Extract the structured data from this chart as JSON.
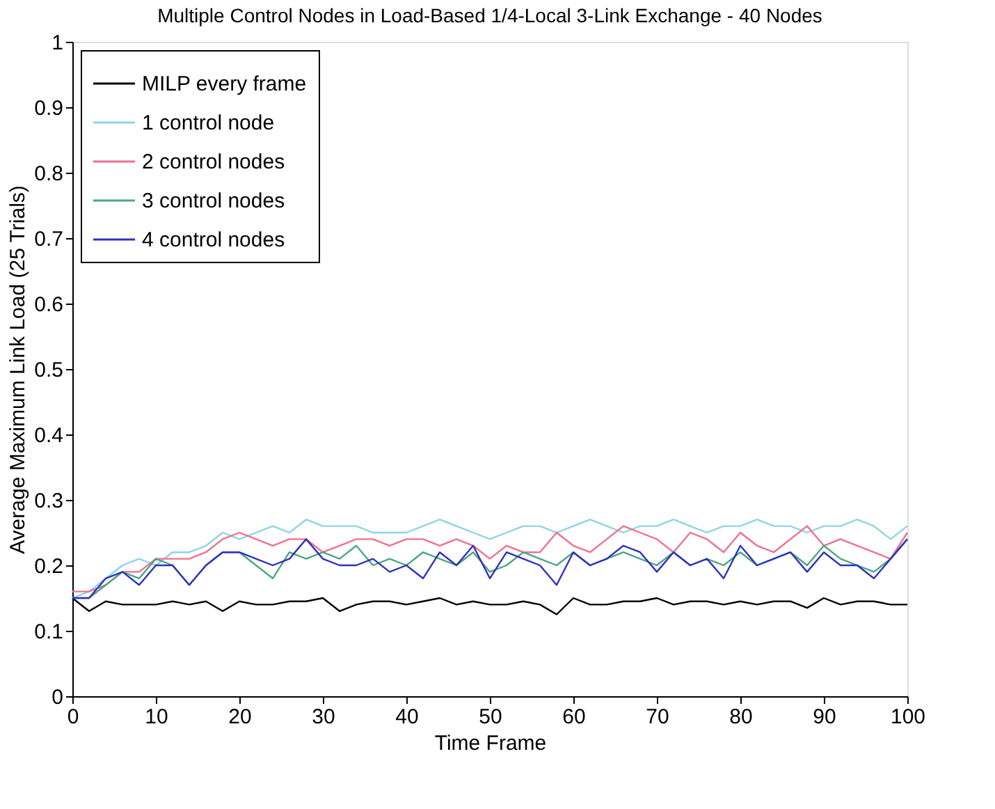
{
  "chart_data": {
    "type": "line",
    "title": "Multiple Control Nodes in Load-Based 1/4-Local 3-Link Exchange - 40 Nodes",
    "xlabel": "Time Frame",
    "ylabel": "Average Maximum Link Load (25 Trials)",
    "x": [
      0,
      2,
      4,
      6,
      8,
      10,
      12,
      14,
      16,
      18,
      20,
      22,
      24,
      26,
      28,
      30,
      32,
      34,
      36,
      38,
      40,
      42,
      44,
      46,
      48,
      50,
      52,
      54,
      56,
      58,
      60,
      62,
      64,
      66,
      68,
      70,
      72,
      74,
      76,
      78,
      80,
      82,
      84,
      86,
      88,
      90,
      92,
      94,
      96,
      98,
      100
    ],
    "series": [
      {
        "name": "MILP every frame",
        "color": "#000000",
        "values": [
          0.15,
          0.13,
          0.145,
          0.14,
          0.14,
          0.14,
          0.145,
          0.14,
          0.145,
          0.13,
          0.145,
          0.14,
          0.14,
          0.145,
          0.145,
          0.15,
          0.13,
          0.14,
          0.145,
          0.145,
          0.14,
          0.145,
          0.15,
          0.14,
          0.145,
          0.14,
          0.14,
          0.145,
          0.14,
          0.125,
          0.15,
          0.14,
          0.14,
          0.145,
          0.145,
          0.15,
          0.14,
          0.145,
          0.145,
          0.14,
          0.145,
          0.14,
          0.145,
          0.145,
          0.135,
          0.15,
          0.14,
          0.145,
          0.145,
          0.14,
          0.14
        ]
      },
      {
        "name": "1 control node",
        "color": "#8fd3e8",
        "values": [
          0.15,
          0.16,
          0.18,
          0.2,
          0.21,
          0.2,
          0.22,
          0.22,
          0.23,
          0.25,
          0.24,
          0.25,
          0.26,
          0.25,
          0.27,
          0.26,
          0.26,
          0.26,
          0.25,
          0.25,
          0.25,
          0.26,
          0.27,
          0.26,
          0.25,
          0.24,
          0.25,
          0.26,
          0.26,
          0.25,
          0.26,
          0.27,
          0.26,
          0.25,
          0.26,
          0.26,
          0.27,
          0.26,
          0.25,
          0.26,
          0.26,
          0.27,
          0.26,
          0.26,
          0.25,
          0.26,
          0.26,
          0.27,
          0.26,
          0.24,
          0.26
        ]
      },
      {
        "name": "2 control nodes",
        "color": "#f07090",
        "values": [
          0.16,
          0.16,
          0.17,
          0.19,
          0.19,
          0.21,
          0.21,
          0.21,
          0.22,
          0.24,
          0.25,
          0.24,
          0.23,
          0.24,
          0.24,
          0.22,
          0.23,
          0.24,
          0.24,
          0.23,
          0.24,
          0.24,
          0.23,
          0.24,
          0.23,
          0.21,
          0.23,
          0.22,
          0.22,
          0.25,
          0.23,
          0.22,
          0.24,
          0.26,
          0.25,
          0.24,
          0.22,
          0.25,
          0.24,
          0.22,
          0.25,
          0.23,
          0.22,
          0.24,
          0.26,
          0.23,
          0.24,
          0.23,
          0.22,
          0.21,
          0.25
        ]
      },
      {
        "name": "3 control nodes",
        "color": "#4aa880",
        "values": [
          0.15,
          0.15,
          0.17,
          0.19,
          0.18,
          0.21,
          0.2,
          0.17,
          0.2,
          0.22,
          0.22,
          0.2,
          0.18,
          0.22,
          0.21,
          0.22,
          0.21,
          0.23,
          0.2,
          0.21,
          0.2,
          0.22,
          0.21,
          0.2,
          0.22,
          0.19,
          0.2,
          0.22,
          0.21,
          0.2,
          0.22,
          0.2,
          0.21,
          0.22,
          0.21,
          0.2,
          0.22,
          0.2,
          0.21,
          0.2,
          0.22,
          0.2,
          0.21,
          0.22,
          0.2,
          0.23,
          0.21,
          0.2,
          0.19,
          0.21,
          0.24
        ]
      },
      {
        "name": "4 control nodes",
        "color": "#3030c0",
        "values": [
          0.15,
          0.15,
          0.18,
          0.19,
          0.17,
          0.2,
          0.2,
          0.17,
          0.2,
          0.22,
          0.22,
          0.21,
          0.2,
          0.21,
          0.24,
          0.21,
          0.2,
          0.2,
          0.21,
          0.19,
          0.2,
          0.18,
          0.22,
          0.2,
          0.23,
          0.18,
          0.22,
          0.21,
          0.2,
          0.17,
          0.22,
          0.2,
          0.21,
          0.23,
          0.22,
          0.19,
          0.22,
          0.2,
          0.21,
          0.18,
          0.23,
          0.2,
          0.21,
          0.22,
          0.19,
          0.22,
          0.2,
          0.2,
          0.18,
          0.21,
          0.24
        ]
      }
    ],
    "xlim": [
      0,
      100
    ],
    "xticks": [
      0,
      10,
      20,
      30,
      40,
      50,
      60,
      70,
      80,
      90,
      100
    ],
    "ylim": [
      0,
      1
    ],
    "yticks": [
      0,
      0.1,
      0.2,
      0.3,
      0.4,
      0.5,
      0.6,
      0.7,
      0.8,
      0.9,
      1
    ],
    "grid": false,
    "legend": "top left",
    "line_style": "solid",
    "marker": "none"
  }
}
